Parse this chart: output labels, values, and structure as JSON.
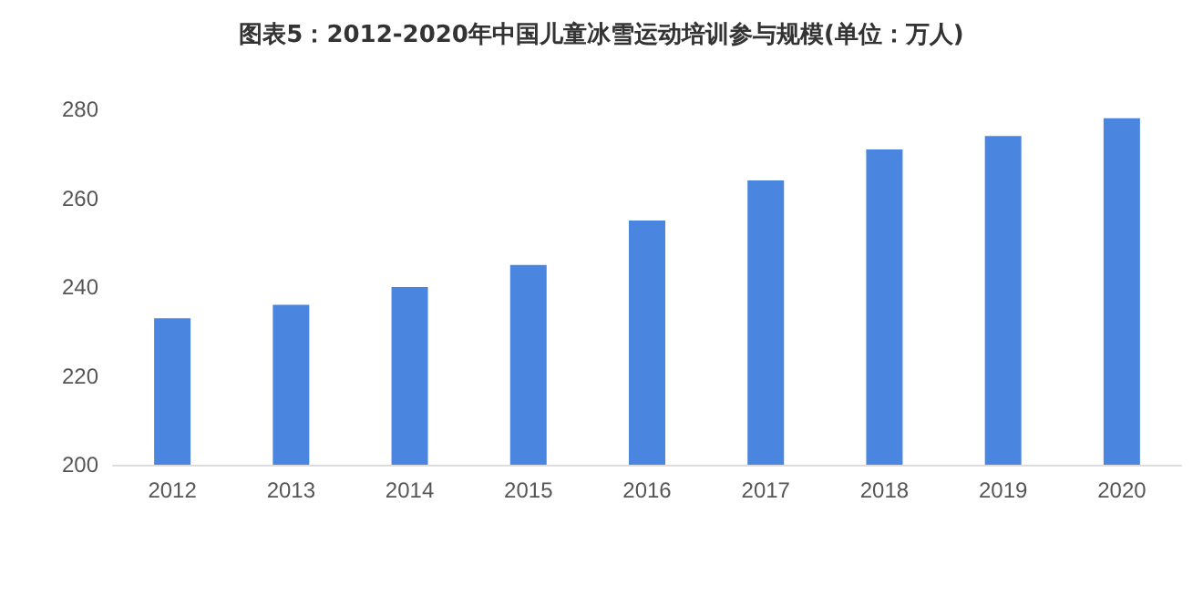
{
  "chart_data": {
    "type": "bar",
    "title": "图表5：2012-2020年中国儿童冰雪运动培训参与规模(单位：万人)",
    "categories": [
      "2012",
      "2013",
      "2014",
      "2015",
      "2016",
      "2017",
      "2018",
      "2019",
      "2020"
    ],
    "values": [
      233,
      236,
      240,
      245,
      255,
      264,
      271,
      274,
      278
    ],
    "color": "#4a86e0",
    "ylim": [
      200,
      280
    ],
    "yticks": [
      200,
      220,
      240,
      260,
      280
    ],
    "grid": false
  }
}
